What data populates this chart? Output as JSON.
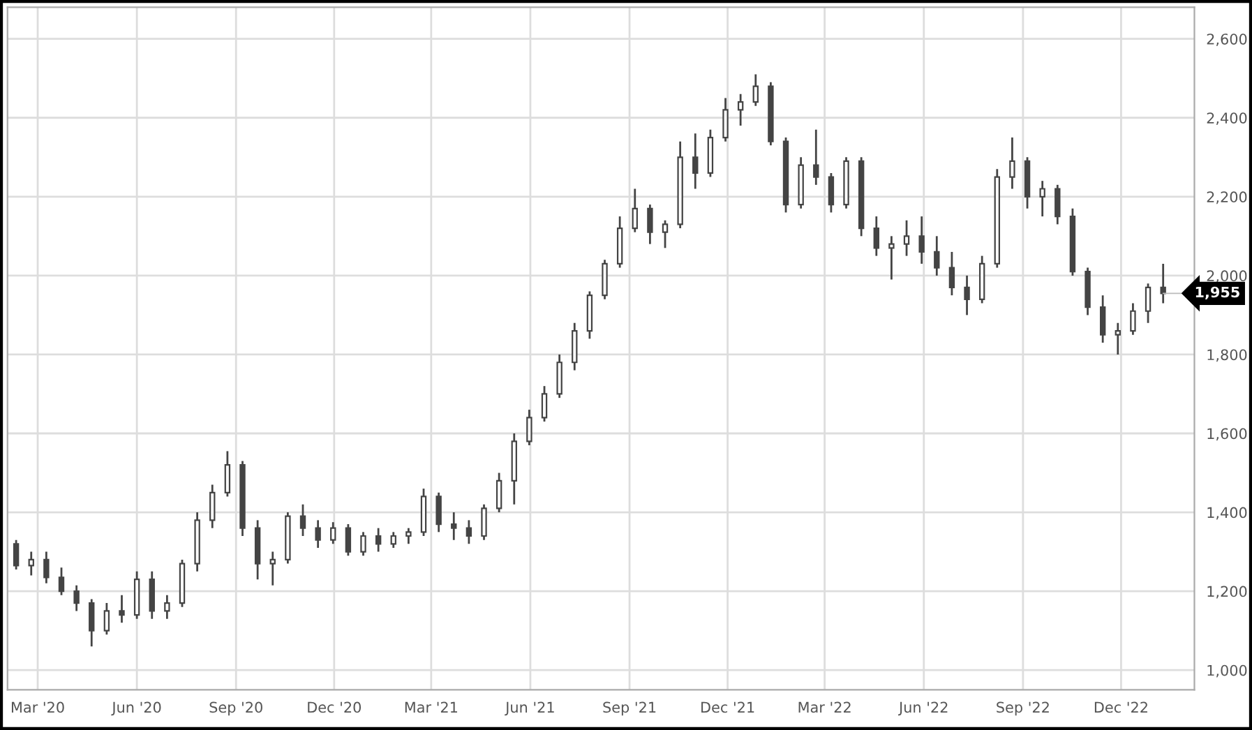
{
  "chart_data": {
    "type": "candlestick",
    "x": [
      "2020-02-10",
      "2020-02-24",
      "2020-03-09",
      "2020-03-23",
      "2020-04-06",
      "2020-04-20",
      "2020-05-04",
      "2020-05-18",
      "2020-06-01",
      "2020-06-15",
      "2020-06-29",
      "2020-07-13",
      "2020-07-27",
      "2020-08-10",
      "2020-08-24",
      "2020-09-07",
      "2020-09-21",
      "2020-10-05",
      "2020-10-19",
      "2020-11-02",
      "2020-11-16",
      "2020-11-30",
      "2020-12-14",
      "2020-12-28",
      "2021-01-11",
      "2021-01-25",
      "2021-02-08",
      "2021-02-22",
      "2021-03-08",
      "2021-03-22",
      "2021-04-05",
      "2021-04-19",
      "2021-05-03",
      "2021-05-17",
      "2021-05-31",
      "2021-06-14",
      "2021-06-28",
      "2021-07-12",
      "2021-07-26",
      "2021-08-09",
      "2021-08-23",
      "2021-09-06",
      "2021-09-20",
      "2021-10-04",
      "2021-10-18",
      "2021-11-01",
      "2021-11-15",
      "2021-11-29",
      "2021-12-13",
      "2021-12-27",
      "2022-01-10",
      "2022-01-24",
      "2022-02-07",
      "2022-02-21",
      "2022-03-07",
      "2022-03-21",
      "2022-04-04",
      "2022-04-18",
      "2022-05-02",
      "2022-05-16",
      "2022-05-30",
      "2022-06-13",
      "2022-06-27",
      "2022-07-11",
      "2022-07-25",
      "2022-08-08",
      "2022-08-22",
      "2022-09-05",
      "2022-09-19",
      "2022-10-03",
      "2022-10-17",
      "2022-10-31",
      "2022-11-14",
      "2022-11-28",
      "2022-12-12",
      "2022-12-26",
      "2023-01-09"
    ],
    "ohlc": [
      [
        1320,
        1330,
        1255,
        1265
      ],
      [
        1265,
        1300,
        1240,
        1280
      ],
      [
        1280,
        1300,
        1220,
        1235
      ],
      [
        1235,
        1260,
        1190,
        1200
      ],
      [
        1200,
        1215,
        1150,
        1170
      ],
      [
        1170,
        1180,
        1060,
        1100
      ],
      [
        1100,
        1170,
        1090,
        1150
      ],
      [
        1150,
        1190,
        1120,
        1140
      ],
      [
        1140,
        1250,
        1130,
        1230
      ],
      [
        1230,
        1250,
        1130,
        1150
      ],
      [
        1150,
        1190,
        1130,
        1170
      ],
      [
        1170,
        1280,
        1160,
        1270
      ],
      [
        1270,
        1400,
        1250,
        1380
      ],
      [
        1380,
        1470,
        1360,
        1450
      ],
      [
        1450,
        1555,
        1440,
        1520
      ],
      [
        1520,
        1530,
        1340,
        1360
      ],
      [
        1360,
        1380,
        1230,
        1270
      ],
      [
        1270,
        1300,
        1215,
        1280
      ],
      [
        1280,
        1400,
        1270,
        1390
      ],
      [
        1390,
        1420,
        1340,
        1360
      ],
      [
        1360,
        1380,
        1310,
        1330
      ],
      [
        1330,
        1375,
        1320,
        1360
      ],
      [
        1360,
        1370,
        1290,
        1300
      ],
      [
        1300,
        1350,
        1290,
        1340
      ],
      [
        1340,
        1360,
        1300,
        1320
      ],
      [
        1320,
        1350,
        1310,
        1340
      ],
      [
        1340,
        1360,
        1320,
        1350
      ],
      [
        1350,
        1460,
        1340,
        1440
      ],
      [
        1440,
        1450,
        1350,
        1370
      ],
      [
        1370,
        1400,
        1330,
        1360
      ],
      [
        1360,
        1380,
        1320,
        1340
      ],
      [
        1340,
        1420,
        1330,
        1410
      ],
      [
        1410,
        1500,
        1400,
        1480
      ],
      [
        1480,
        1600,
        1420,
        1580
      ],
      [
        1580,
        1660,
        1570,
        1640
      ],
      [
        1640,
        1720,
        1630,
        1700
      ],
      [
        1700,
        1800,
        1690,
        1780
      ],
      [
        1780,
        1880,
        1760,
        1860
      ],
      [
        1860,
        1960,
        1840,
        1950
      ],
      [
        1950,
        2040,
        1940,
        2030
      ],
      [
        2030,
        2150,
        2020,
        2120
      ],
      [
        2120,
        2220,
        2110,
        2170
      ],
      [
        2170,
        2180,
        2080,
        2110
      ],
      [
        2110,
        2140,
        2070,
        2130
      ],
      [
        2130,
        2340,
        2120,
        2300
      ],
      [
        2300,
        2360,
        2220,
        2260
      ],
      [
        2260,
        2370,
        2250,
        2350
      ],
      [
        2350,
        2450,
        2340,
        2420
      ],
      [
        2420,
        2460,
        2380,
        2440
      ],
      [
        2440,
        2510,
        2430,
        2480
      ],
      [
        2480,
        2490,
        2330,
        2340
      ],
      [
        2340,
        2350,
        2160,
        2180
      ],
      [
        2180,
        2300,
        2170,
        2280
      ],
      [
        2280,
        2370,
        2230,
        2250
      ],
      [
        2250,
        2260,
        2160,
        2180
      ],
      [
        2180,
        2300,
        2170,
        2290
      ],
      [
        2290,
        2300,
        2100,
        2120
      ],
      [
        2120,
        2150,
        2050,
        2070
      ],
      [
        2070,
        2100,
        1990,
        2080
      ],
      [
        2080,
        2140,
        2050,
        2100
      ],
      [
        2100,
        2150,
        2030,
        2060
      ],
      [
        2060,
        2100,
        2000,
        2020
      ],
      [
        2020,
        2060,
        1950,
        1970
      ],
      [
        1970,
        2000,
        1900,
        1940
      ],
      [
        1940,
        2050,
        1930,
        2030
      ],
      [
        2030,
        2270,
        2020,
        2250
      ],
      [
        2250,
        2350,
        2220,
        2290
      ],
      [
        2290,
        2300,
        2170,
        2200
      ],
      [
        2200,
        2240,
        2150,
        2220
      ],
      [
        2220,
        2230,
        2130,
        2150
      ],
      [
        2150,
        2170,
        2000,
        2010
      ],
      [
        2010,
        2020,
        1900,
        1920
      ],
      [
        1920,
        1950,
        1830,
        1850
      ],
      [
        1850,
        1880,
        1800,
        1860
      ],
      [
        1860,
        1930,
        1850,
        1910
      ],
      [
        1910,
        1980,
        1880,
        1970
      ],
      [
        1970,
        2030,
        1930,
        1955
      ]
    ],
    "color": "#444444",
    "xlim": [
      "2020-02-02",
      "2023-02-07"
    ],
    "xticks": [
      {
        "value": "2020-03-01",
        "label": "Mar '20"
      },
      {
        "value": "2020-06-01",
        "label": "Jun '20"
      },
      {
        "value": "2020-09-01",
        "label": "Sep '20"
      },
      {
        "value": "2020-12-01",
        "label": "Dec '20"
      },
      {
        "value": "2021-03-01",
        "label": "Mar '21"
      },
      {
        "value": "2021-06-01",
        "label": "Jun '21"
      },
      {
        "value": "2021-09-01",
        "label": "Sep '21"
      },
      {
        "value": "2021-12-01",
        "label": "Dec '21"
      },
      {
        "value": "2022-03-01",
        "label": "Mar '22"
      },
      {
        "value": "2022-06-01",
        "label": "Jun '22"
      },
      {
        "value": "2022-09-01",
        "label": "Sep '22"
      },
      {
        "value": "2022-12-01",
        "label": "Dec '22"
      }
    ],
    "ylim": [
      950,
      2680
    ],
    "yticks": [
      {
        "value": 1000,
        "label": "1,000"
      },
      {
        "value": 1200,
        "label": "1,200"
      },
      {
        "value": 1400,
        "label": "1,400"
      },
      {
        "value": 1600,
        "label": "1,600"
      },
      {
        "value": 1800,
        "label": "1,800"
      },
      {
        "value": 2000,
        "label": "2,000"
      },
      {
        "value": 2200,
        "label": "2,200"
      },
      {
        "value": 2400,
        "label": "2,400"
      },
      {
        "value": 2600,
        "label": "2,600"
      }
    ],
    "annotations": [
      {
        "text": "1,955",
        "x": "2023-01-09",
        "y": 1955
      }
    ],
    "grid": true
  }
}
